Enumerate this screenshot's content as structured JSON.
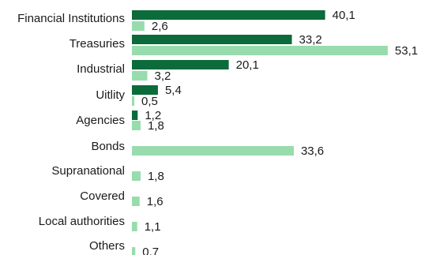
{
  "chart_data": {
    "type": "bar",
    "orientation": "horizontal",
    "categories": [
      "Financial Institutions",
      "Treasuries",
      "Industrial",
      "Uitlity",
      "Agencies",
      "Bonds",
      "Supranational",
      "Covered",
      "Local authorities",
      "Others"
    ],
    "series": [
      {
        "color": "#0b6b3a",
        "values": [
          40.1,
          33.2,
          20.1,
          5.4,
          1.2,
          null,
          null,
          null,
          null,
          null
        ],
        "labels": [
          "40,1",
          "33,2",
          "20,1",
          "5,4",
          "1,2",
          "",
          "",
          "",
          "",
          ""
        ]
      },
      {
        "color": "#98dcae",
        "values": [
          2.6,
          53.1,
          3.2,
          0.5,
          1.8,
          33.6,
          1.8,
          1.6,
          1.1,
          0.7
        ],
        "labels": [
          "2,6",
          "53,1",
          "3,2",
          "0,5",
          "1,8",
          "33,6",
          "1,8",
          "1,6",
          "1,1",
          "0,7"
        ]
      }
    ],
    "xlim": [
      0,
      60
    ],
    "grid": false,
    "legend": "none",
    "title": "",
    "xlabel": "",
    "ylabel": ""
  }
}
